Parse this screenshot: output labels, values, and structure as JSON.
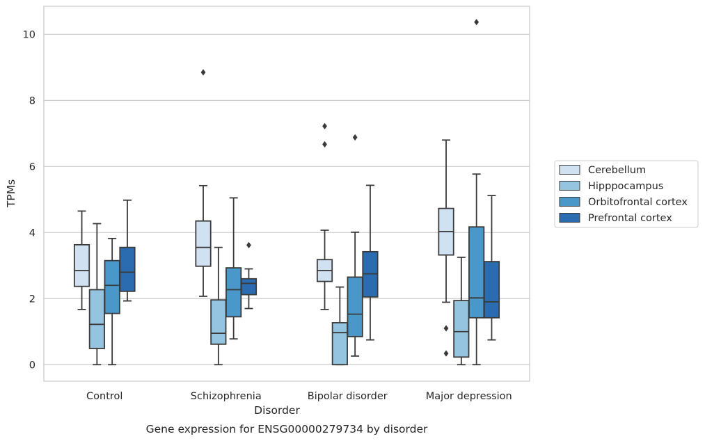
{
  "chart_data": {
    "type": "boxplot",
    "title": "",
    "caption": "Gene expression for ENSG00000279734 by disorder",
    "xlabel": "Disorder",
    "ylabel": "TPMs",
    "ylim": [
      -0.5,
      10.85
    ],
    "yticks": [
      0,
      2,
      4,
      6,
      8,
      10
    ],
    "grid": "horizontal",
    "legend_position": "right",
    "categories": [
      "Control",
      "Schizophrenia",
      "Bipolar disorder",
      "Major depression"
    ],
    "series": [
      {
        "name": "Cerebellum",
        "color": "#d0e1f2",
        "boxes": [
          {
            "whisker_low": 1.67,
            "q1": 2.37,
            "median": 2.85,
            "q3": 3.63,
            "whisker_high": 4.65,
            "outliers": []
          },
          {
            "whisker_low": 2.07,
            "q1": 2.98,
            "median": 3.55,
            "q3": 4.35,
            "whisker_high": 5.42,
            "outliers": [
              8.85
            ]
          },
          {
            "whisker_low": 1.67,
            "q1": 2.52,
            "median": 2.85,
            "q3": 3.18,
            "whisker_high": 4.07,
            "outliers": [
              6.67,
              7.22
            ]
          },
          {
            "whisker_low": 1.89,
            "q1": 3.32,
            "median": 4.03,
            "q3": 4.73,
            "whisker_high": 6.8,
            "outliers": [
              0.34,
              1.1
            ]
          }
        ]
      },
      {
        "name": "Hipppocampus",
        "color": "#94c4df",
        "boxes": [
          {
            "whisker_low": 0.0,
            "q1": 0.49,
            "median": 1.22,
            "q3": 2.27,
            "whisker_high": 4.27,
            "outliers": []
          },
          {
            "whisker_low": 0.0,
            "q1": 0.62,
            "median": 0.95,
            "q3": 1.96,
            "whisker_high": 3.55,
            "outliers": []
          },
          {
            "whisker_low": 0.0,
            "q1": 0.0,
            "median": 0.97,
            "q3": 1.27,
            "whisker_high": 2.35,
            "outliers": []
          },
          {
            "whisker_low": 0.0,
            "q1": 0.23,
            "median": 1.0,
            "q3": 1.94,
            "whisker_high": 3.25,
            "outliers": []
          }
        ]
      },
      {
        "name": "Orbitofrontal cortex",
        "color": "#4a98c9",
        "boxes": [
          {
            "whisker_low": 0.0,
            "q1": 1.55,
            "median": 2.4,
            "q3": 3.15,
            "whisker_high": 3.82,
            "outliers": []
          },
          {
            "whisker_low": 0.78,
            "q1": 1.45,
            "median": 2.27,
            "q3": 2.93,
            "whisker_high": 5.05,
            "outliers": []
          },
          {
            "whisker_low": 0.26,
            "q1": 0.85,
            "median": 1.53,
            "q3": 2.65,
            "whisker_high": 4.01,
            "outliers": [
              6.88
            ]
          },
          {
            "whisker_low": 0.0,
            "q1": 1.42,
            "median": 2.02,
            "q3": 4.17,
            "whisker_high": 5.77,
            "outliers": [
              10.37
            ]
          }
        ]
      },
      {
        "name": "Prefrontal cortex",
        "color": "#2b6cb0",
        "boxes": [
          {
            "whisker_low": 1.93,
            "q1": 2.22,
            "median": 2.8,
            "q3": 3.55,
            "whisker_high": 4.98,
            "outliers": []
          },
          {
            "whisker_low": 1.7,
            "q1": 2.12,
            "median": 2.46,
            "q3": 2.6,
            "whisker_high": 2.9,
            "outliers": [
              3.62
            ]
          },
          {
            "whisker_low": 0.75,
            "q1": 2.05,
            "median": 2.75,
            "q3": 3.42,
            "whisker_high": 5.43,
            "outliers": []
          },
          {
            "whisker_low": 0.75,
            "q1": 1.42,
            "median": 1.9,
            "q3": 3.12,
            "whisker_high": 5.12,
            "outliers": []
          }
        ]
      }
    ]
  }
}
